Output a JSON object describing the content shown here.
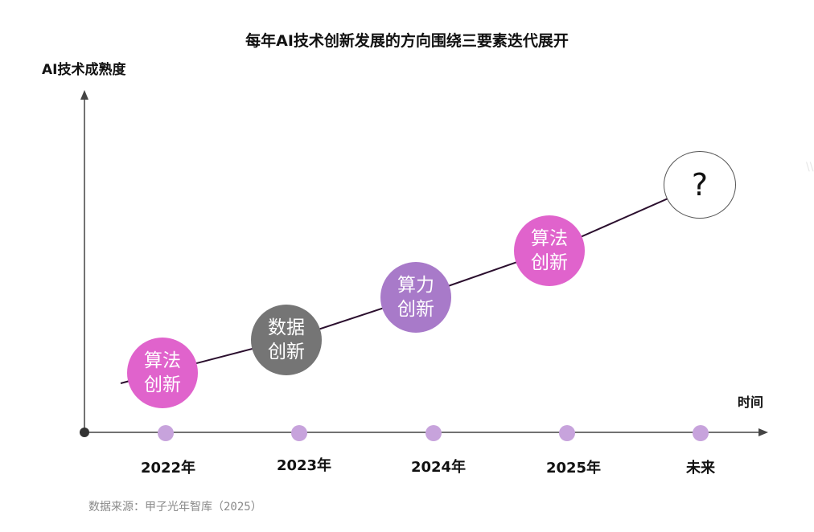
{
  "title": "每年AI技术创新发展的方向围绕三要素迭代展开",
  "y_axis_label": "AI技术成熟度",
  "x_axis_label": "时间",
  "source": "数据来源：甲子光年智库（2025）",
  "watermark": "\\\\",
  "periods": [
    {
      "year": "2022年",
      "line1": "算法",
      "line2": "创新",
      "color": "#e063cc"
    },
    {
      "year": "2023年",
      "line1": "数据",
      "line2": "创新",
      "color": "#757575"
    },
    {
      "year": "2024年",
      "line1": "算力",
      "line2": "创新",
      "color": "#a87ac9"
    },
    {
      "year": "2025年",
      "line1": "算法",
      "line2": "创新",
      "color": "#e063cc"
    },
    {
      "year": "未来",
      "symbol": "?",
      "color": "#ffffff"
    }
  ],
  "colors": {
    "axis": "#444444",
    "trend_line": "#2b0f2e",
    "tick_dot": "#c7a3dc",
    "origin_dot": "#333333"
  }
}
